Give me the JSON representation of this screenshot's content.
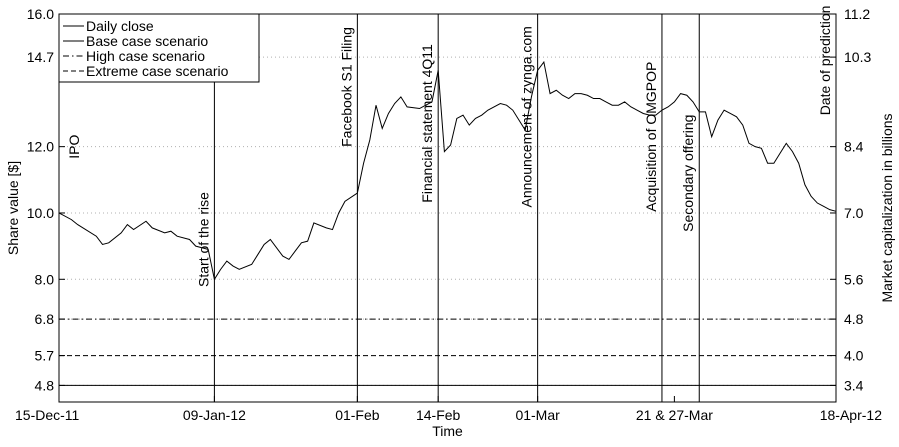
{
  "chart_data": {
    "type": "line",
    "xlabel": "Time",
    "ylabel": "Share value [$]",
    "y2label": "Market capitalization in billions",
    "ylim": [
      4.3,
      16.0
    ],
    "grid": "horizontal dotted",
    "legend_placement": "top-left",
    "left_ticks": [
      "4.8",
      "5.7",
      "6.8",
      "8.0",
      "10.0",
      "12.0",
      "14.7",
      "16.0"
    ],
    "right_ticks": [
      "3.4",
      "4.0",
      "4.8",
      "5.6",
      "7.0",
      "8.4",
      "10.3",
      "11.2"
    ],
    "x_ticks": [
      {
        "label": "15-Dec-11",
        "day": 0
      },
      {
        "label": "09-Jan-12",
        "day": 25
      },
      {
        "label": "01-Feb",
        "day": 48
      },
      {
        "label": "14-Feb",
        "day": 61
      },
      {
        "label": "01-Mar",
        "day": 77
      },
      {
        "label": "21 & 27-Mar",
        "day": 99
      },
      {
        "label": "18-Apr-12",
        "day": 125
      }
    ],
    "events": [
      {
        "label": "IPO",
        "day": 0,
        "line": false
      },
      {
        "label": "Start of the rise",
        "day": 25,
        "line": true
      },
      {
        "label": "Facebook S1 Filing",
        "day": 48,
        "line": true
      },
      {
        "label": "Financial statement 4Q11",
        "day": 61,
        "line": true
      },
      {
        "label": "Announcement of zynga.com",
        "day": 77,
        "line": true
      },
      {
        "label": "Acquisition of OMGPOP",
        "day": 97,
        "line": true
      },
      {
        "label": "Secondary offering",
        "day": 103,
        "line": true
      },
      {
        "label": "Date of prediction",
        "day": 125,
        "line": false
      }
    ],
    "scenarios": [
      {
        "name": "High case scenario",
        "value": 6.8,
        "style": "dashdot"
      },
      {
        "name": "Extreme case scenario",
        "value": 5.7,
        "style": "dashed"
      },
      {
        "name": "Base case scenario",
        "value": 4.8,
        "style": "solid"
      }
    ],
    "series": [
      {
        "name": "Daily close",
        "x": [
          0,
          2,
          3,
          6,
          7,
          8,
          10,
          11,
          12,
          14,
          15,
          17,
          18,
          19,
          21,
          22,
          24,
          25,
          26,
          27,
          28,
          29,
          31,
          32,
          33,
          34,
          36,
          37,
          38,
          39,
          40,
          41,
          43,
          44,
          45,
          46,
          48,
          49,
          50,
          51,
          52,
          53,
          54,
          55,
          56,
          58,
          59,
          60,
          61,
          62,
          63,
          64,
          65,
          66,
          67,
          68,
          69,
          71,
          72,
          73,
          75,
          76,
          77,
          78,
          79,
          80,
          81,
          82,
          83,
          84,
          85,
          86,
          87,
          88,
          89,
          90,
          91,
          92,
          93,
          94,
          95,
          96,
          97,
          98,
          99,
          100,
          101,
          102,
          103,
          104,
          105,
          106,
          107,
          108,
          109,
          110,
          111,
          112,
          113,
          114,
          115,
          116,
          117,
          118,
          119,
          120,
          121,
          122,
          123,
          124,
          125
        ],
        "values": [
          10.0,
          9.8,
          9.65,
          9.3,
          9.05,
          9.1,
          9.4,
          9.65,
          9.5,
          9.75,
          9.55,
          9.4,
          9.45,
          9.3,
          9.2,
          9.0,
          8.9,
          8.0,
          8.3,
          8.55,
          8.4,
          8.3,
          8.45,
          8.75,
          9.05,
          9.2,
          8.7,
          8.6,
          8.85,
          9.1,
          9.15,
          9.7,
          9.55,
          9.5,
          10.0,
          10.35,
          10.6,
          11.5,
          12.2,
          13.25,
          12.55,
          13.0,
          13.3,
          13.5,
          13.2,
          13.15,
          13.25,
          13.35,
          14.3,
          11.85,
          12.05,
          12.85,
          12.95,
          12.65,
          12.85,
          12.95,
          13.1,
          13.3,
          13.25,
          13.1,
          12.5,
          13.5,
          14.3,
          14.55,
          13.6,
          13.7,
          13.55,
          13.45,
          13.6,
          13.6,
          13.55,
          13.45,
          13.45,
          13.35,
          13.25,
          13.25,
          13.35,
          13.2,
          13.1,
          13.0,
          12.95,
          12.95,
          13.1,
          13.2,
          13.35,
          13.6,
          13.55,
          13.35,
          13.05,
          13.05,
          12.3,
          12.8,
          13.1,
          13.0,
          12.9,
          12.65,
          12.1,
          12.0,
          11.95,
          11.5,
          11.5,
          11.8,
          12.1,
          11.85,
          11.5,
          10.85,
          10.5,
          10.3,
          10.2,
          10.1,
          10.05
        ]
      }
    ]
  }
}
